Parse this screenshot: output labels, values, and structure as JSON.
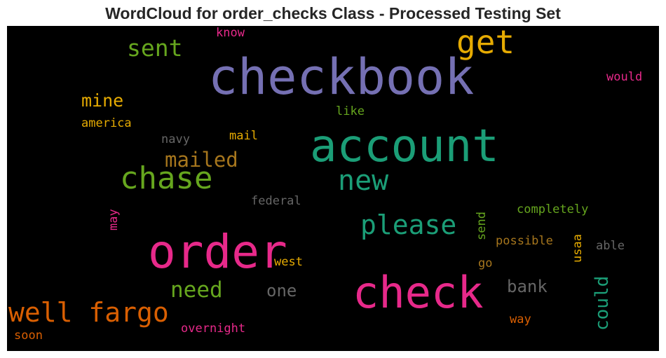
{
  "chart_data": {
    "type": "wordcloud",
    "title": "WordCloud for order_checks Class - Processed Testing Set",
    "words": [
      {
        "text": "checkbook",
        "color": "#7570b3"
      },
      {
        "text": "account",
        "color": "#1b9e77"
      },
      {
        "text": "order",
        "color": "#e7298a"
      },
      {
        "text": "check",
        "color": "#e7298a"
      },
      {
        "text": "get",
        "color": "#e6ab02"
      },
      {
        "text": "chase",
        "color": "#66a61e"
      },
      {
        "text": "well fargo",
        "color": "#d95f02"
      },
      {
        "text": "new",
        "color": "#1b9e77"
      },
      {
        "text": "please",
        "color": "#1b9e77"
      },
      {
        "text": "sent",
        "color": "#66a61e"
      },
      {
        "text": "mailed",
        "color": "#a6761d"
      },
      {
        "text": "need",
        "color": "#66a61e"
      },
      {
        "text": "mine",
        "color": "#e6ab02"
      },
      {
        "text": "bank",
        "color": "#666666"
      },
      {
        "text": "one",
        "color": "#666666"
      },
      {
        "text": "could",
        "color": "#1b9e77"
      },
      {
        "text": "america",
        "color": "#e6ab02"
      },
      {
        "text": "navy",
        "color": "#666666"
      },
      {
        "text": "mail",
        "color": "#e6ab02"
      },
      {
        "text": "like",
        "color": "#66a61e"
      },
      {
        "text": "know",
        "color": "#e7298a"
      },
      {
        "text": "would",
        "color": "#e7298a"
      },
      {
        "text": "federal",
        "color": "#666666"
      },
      {
        "text": "completely",
        "color": "#66a61e"
      },
      {
        "text": "send",
        "color": "#66a61e"
      },
      {
        "text": "possible",
        "color": "#a6761d"
      },
      {
        "text": "usaa",
        "color": "#e6ab02"
      },
      {
        "text": "able",
        "color": "#666666"
      },
      {
        "text": "may",
        "color": "#e7298a"
      },
      {
        "text": "west",
        "color": "#e6ab02"
      },
      {
        "text": "go",
        "color": "#a6761d"
      },
      {
        "text": "overnight",
        "color": "#e7298a"
      },
      {
        "text": "way",
        "color": "#d95f02"
      },
      {
        "text": "soon",
        "color": "#d95f02"
      }
    ]
  }
}
